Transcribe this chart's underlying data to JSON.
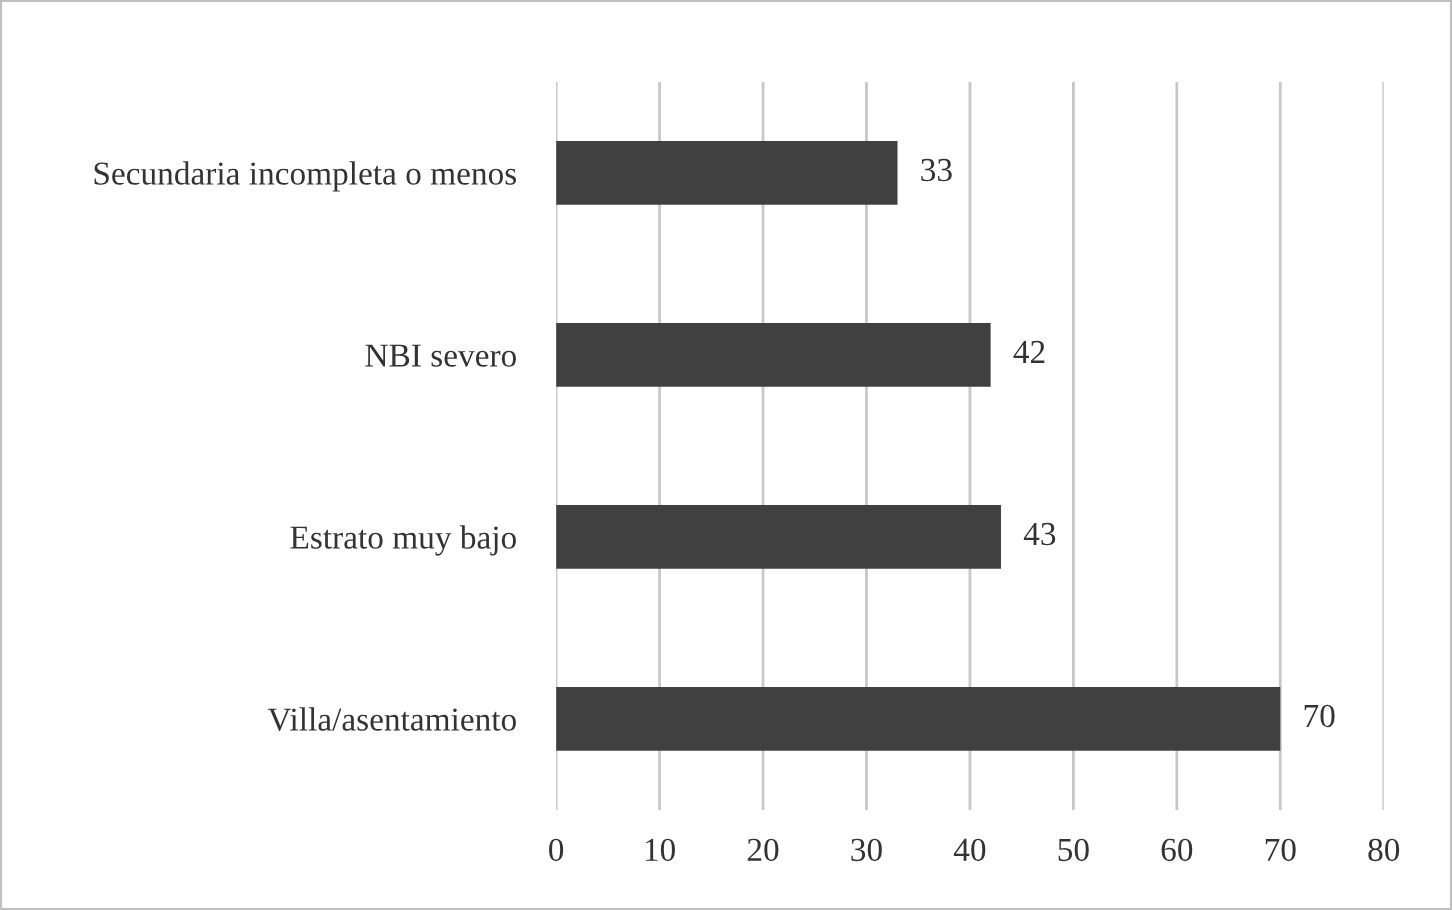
{
  "chart_data": {
    "type": "bar",
    "orientation": "horizontal",
    "categories": [
      "Secundaria incompleta o menos",
      "NBI severo",
      "Estrato muy bajo",
      "Villa/asentamiento"
    ],
    "values": [
      33,
      42,
      43,
      70
    ],
    "color": "#404040",
    "xlim": [
      0,
      80
    ],
    "xticks": [
      0,
      10,
      20,
      30,
      40,
      50,
      60,
      70,
      80
    ],
    "grid": "x",
    "data_labels": true
  }
}
